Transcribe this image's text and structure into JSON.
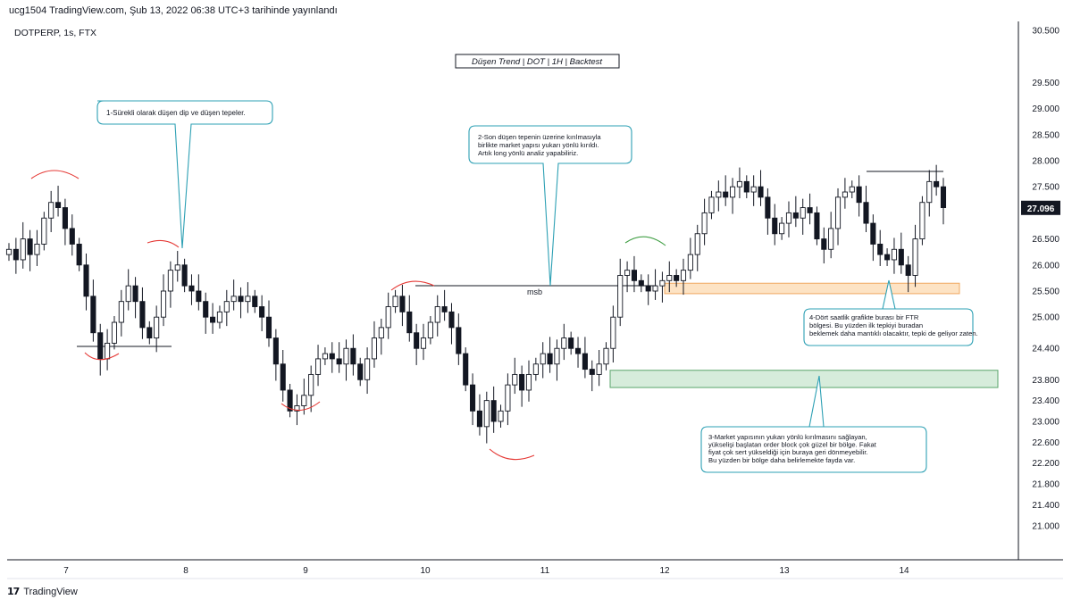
{
  "header": {
    "published": "ucg1504 TradingView.com, Şub 13, 2022 06:38 UTC+3 tarihinde yayınlandı"
  },
  "symbol": {
    "label": "DOTPERP, 1s, FTX"
  },
  "footer": {
    "brand": "TradingView"
  },
  "colors": {
    "up": "#26a69a",
    "down": "#ef5350",
    "candle": "#131722",
    "annotation": "#2da0b4",
    "arrow_red": "#e53935",
    "arrow_green": "#43a047",
    "ftr_zone": "#fde3c4",
    "ob_zone": "#d6ecdb"
  },
  "chart_data": {
    "type": "candlestick",
    "title": "Düşen Trend | DOT | 1H | Backtest",
    "xlabel": "",
    "ylabel": "",
    "x_ticks": [
      "7",
      "8",
      "9",
      "10",
      "11",
      "12",
      "13",
      "14"
    ],
    "y_ticks": [
      "30.500",
      "29.500",
      "29.000",
      "28.500",
      "28.000",
      "27.500",
      "26.500",
      "26.000",
      "25.500",
      "25.000",
      "24.400",
      "23.800",
      "23.400",
      "23.000",
      "22.600",
      "22.200",
      "21.800",
      "21.400",
      "21.000"
    ],
    "ylim": [
      20.6,
      30.7
    ],
    "last_price": "27.096",
    "closes": [
      26.3,
      26.1,
      26.5,
      26.2,
      26.4,
      26.9,
      27.2,
      27.1,
      26.7,
      26.4,
      26.0,
      25.4,
      24.7,
      24.2,
      24.5,
      24.9,
      25.3,
      25.6,
      25.3,
      24.8,
      24.6,
      25.0,
      25.5,
      25.9,
      26.0,
      25.6,
      25.5,
      25.3,
      25.0,
      24.9,
      25.1,
      25.3,
      25.4,
      25.3,
      25.4,
      25.2,
      25.0,
      24.6,
      24.1,
      23.6,
      23.2,
      23.3,
      23.5,
      23.9,
      24.2,
      24.3,
      24.2,
      24.1,
      24.4,
      24.1,
      23.8,
      24.2,
      24.6,
      24.8,
      25.2,
      25.4,
      25.1,
      24.7,
      24.4,
      24.6,
      24.9,
      25.2,
      25.1,
      24.8,
      24.3,
      23.7,
      23.2,
      22.9,
      23.4,
      23.0,
      23.2,
      23.7,
      23.9,
      23.6,
      23.9,
      24.1,
      24.3,
      24.1,
      24.4,
      24.6,
      24.4,
      24.3,
      24.0,
      23.9,
      24.1,
      24.4,
      25.0,
      25.8,
      25.9,
      25.7,
      25.6,
      25.5,
      25.6,
      25.7,
      25.8,
      25.7,
      25.9,
      26.2,
      26.6,
      27.0,
      27.3,
      27.4,
      27.3,
      27.5,
      27.6,
      27.4,
      27.5,
      27.3,
      26.9,
      26.6,
      26.8,
      27.0,
      26.9,
      27.1,
      27.0,
      26.5,
      26.3,
      26.7,
      27.3,
      27.4,
      27.5,
      27.2,
      26.8,
      26.4,
      26.2,
      26.1,
      26.3,
      26.0,
      25.8,
      26.5,
      27.2,
      27.6,
      27.5,
      27.1
    ],
    "annotations": [
      "1-Sürekli olarak düşen dip ve düşen tepeler.",
      "2-Son düşen tepenin üzerine kırılmasıyla birlikte market yapısı yukarı yönlü kırıldı. Artık long yönlü analiz yapabiliriz.",
      "3-Market yapısının yukarı yönlü kırılmasını sağlayan, yükselişi başlatan order block çok güzel bir bölge. Fakat fiyat çok sert yükseldiği için buraya geri dönmeyebilir. Bu yüzden bir bölge daha belirlemekte fayda var.",
      "4-Dört saatlik grafikte burası bir FTR bölgesi. Bu yüzden ilk tepkiyi buradan beklemek daha mantıklı olacaktır, tepki de geliyor zaten."
    ],
    "msb_label": "msb",
    "ftr_zone": [
      25.45,
      25.65
    ],
    "ob_zone": [
      23.65,
      23.98
    ]
  }
}
